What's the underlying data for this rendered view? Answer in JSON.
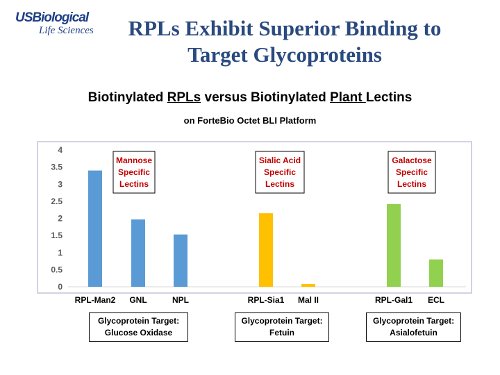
{
  "logo": {
    "main": "USBiological",
    "sub": "Life Sciences"
  },
  "title": {
    "line1": "RPLs Exhibit Superior Binding to",
    "line2": "Target Glycoproteins"
  },
  "subtitle": {
    "part1": "Biotinylated ",
    "part2": "RPLs",
    "part3": " versus Biotinylated ",
    "part4": "Plant ",
    "part5": "Lectins"
  },
  "subtitle2": "on ForteBio Octet BLI Platform",
  "chart_data": {
    "type": "bar",
    "categories": [
      "RPL-Man2",
      "GNL",
      "NPL",
      "RPL-Sia1",
      "Mal II",
      "RPL-Gal1",
      "ECL"
    ],
    "values": [
      3.4,
      1.97,
      1.53,
      2.15,
      0.08,
      2.42,
      0.8
    ],
    "colors": [
      "#5b9bd5",
      "#5b9bd5",
      "#5b9bd5",
      "#ffc000",
      "#ffc000",
      "#92d050",
      "#92d050"
    ],
    "ylim": [
      0,
      4
    ],
    "yticks": [
      "0",
      "0.5",
      "1",
      "1.5",
      "2",
      "2.5",
      "3",
      "3.5",
      "4"
    ],
    "grid": false,
    "annotations": [
      {
        "lines": [
          "Mannose",
          "Specific",
          "Lectins"
        ],
        "color": "#c00000"
      },
      {
        "lines": [
          "Sialic Acid",
          "Specific",
          "Lectins"
        ],
        "color": "#c00000"
      },
      {
        "lines": [
          "Galactose",
          "Specific",
          "Lectins"
        ],
        "color": "#c00000"
      }
    ]
  },
  "targets": [
    {
      "line1": "Glycoprotein Target:",
      "line2": "Glucose Oxidase"
    },
    {
      "line1": "Glycoprotein Target:",
      "line2": "Fetuin"
    },
    {
      "line1": "Glycoprotein Target:",
      "line2": "Asialofetuin"
    }
  ]
}
